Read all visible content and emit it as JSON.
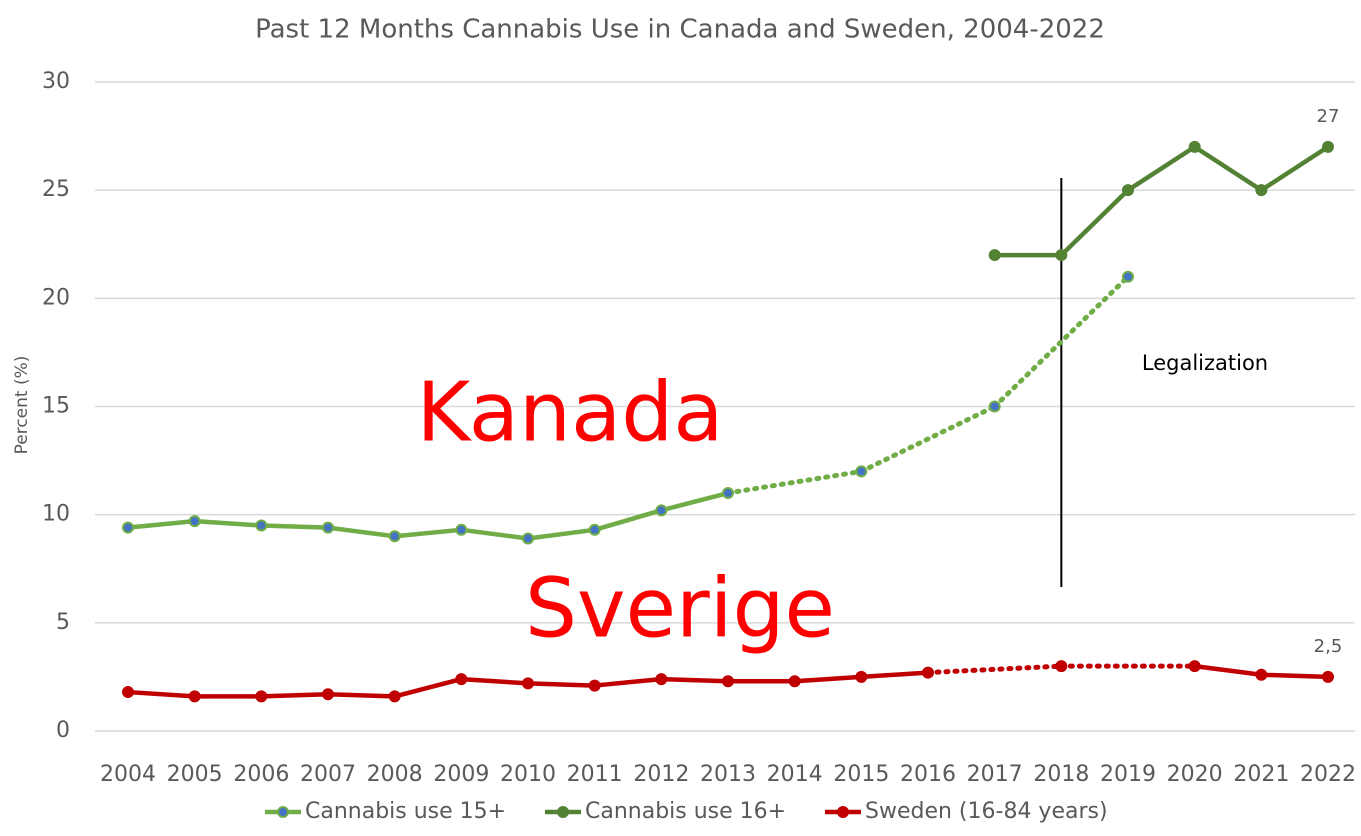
{
  "chart_data": {
    "type": "line",
    "title": "Past 12 Months Cannabis Use in Canada and Sweden, 2004-2022",
    "y_label": "Percent (%)",
    "x": [
      2004,
      2005,
      2006,
      2007,
      2008,
      2009,
      2010,
      2011,
      2012,
      2013,
      2014,
      2015,
      2016,
      2017,
      2018,
      2019,
      2020,
      2021,
      2022
    ],
    "xlim": [
      2004,
      2022
    ],
    "ylim": [
      0,
      30
    ],
    "yticks": [
      0,
      5,
      10,
      15,
      20,
      25,
      30
    ],
    "grid": true,
    "legend": "bottom",
    "series": [
      {
        "name": "Cannabis use 15+",
        "color": "#70ad47",
        "marker_color": "#4472c4",
        "values": [
          9.4,
          9.7,
          9.5,
          9.4,
          9.0,
          9.3,
          8.9,
          9.3,
          10.2,
          11.0,
          null,
          12,
          null,
          15,
          null,
          21,
          null,
          null,
          null
        ]
      },
      {
        "name": "Cannabis use 16+",
        "color": "#548235",
        "marker_color": "#548235",
        "values": [
          null,
          null,
          null,
          null,
          null,
          null,
          null,
          null,
          null,
          null,
          null,
          null,
          null,
          22,
          22,
          25,
          27,
          25,
          27
        ],
        "value_labels": [
          null,
          null,
          null,
          null,
          null,
          null,
          null,
          null,
          null,
          null,
          null,
          null,
          null,
          null,
          null,
          null,
          null,
          null,
          "27"
        ]
      },
      {
        "name": "Sweden (16-84 years)",
        "color": "#c00000",
        "marker_color": "#c00000",
        "values": [
          1.8,
          1.6,
          1.6,
          1.7,
          1.6,
          2.4,
          2.2,
          2.1,
          2.4,
          2.3,
          2.3,
          2.5,
          2.7,
          null,
          3.0,
          null,
          3.0,
          2.6,
          2.5
        ],
        "value_labels": [
          null,
          null,
          null,
          null,
          null,
          null,
          null,
          null,
          null,
          null,
          null,
          null,
          null,
          null,
          null,
          null,
          null,
          null,
          "2,5"
        ]
      }
    ],
    "legalization": {
      "x": 2018,
      "label": "Legalization"
    },
    "overlays": [
      "Kanada",
      "Sverige"
    ]
  }
}
